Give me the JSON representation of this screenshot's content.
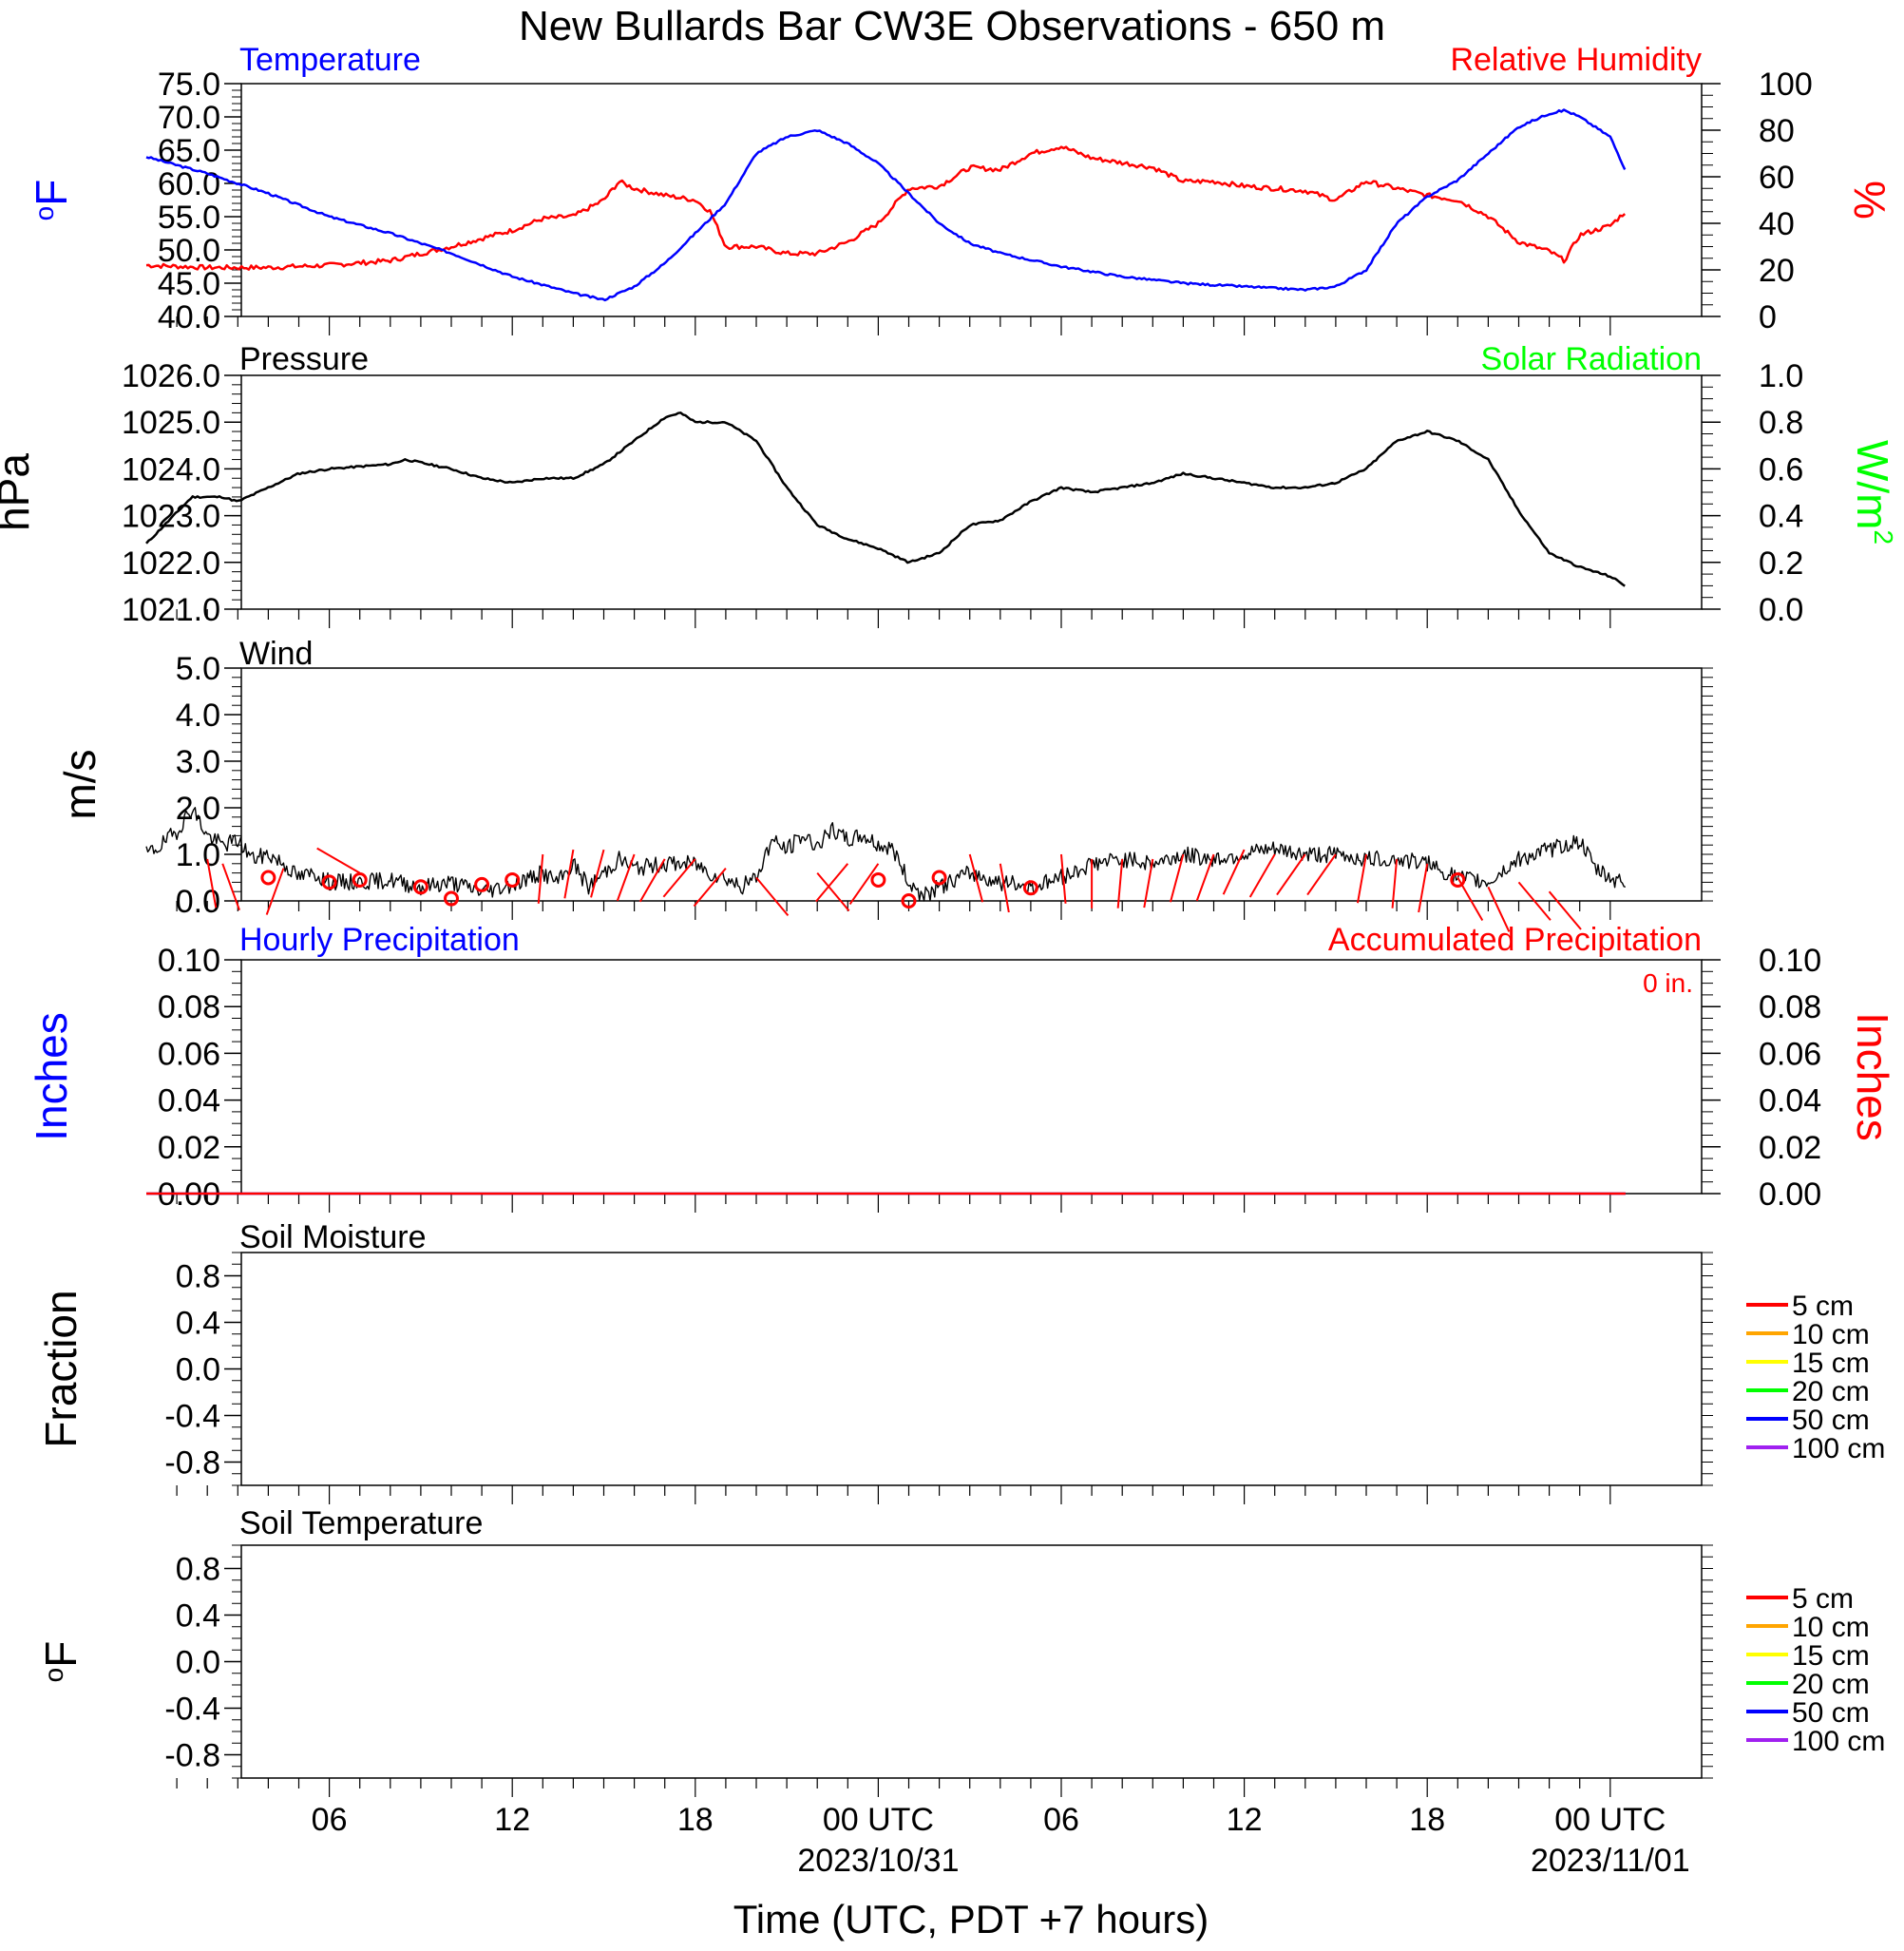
{
  "title": "New Bullards Bar CW3E Observations - 650 m",
  "xaxis": {
    "label": "Time (UTC, PDT +7 hours)",
    "ticks": [
      {
        "hour": 6,
        "label": "06",
        "date": ""
      },
      {
        "hour": 12,
        "label": "12",
        "date": ""
      },
      {
        "hour": 18,
        "label": "18",
        "date": ""
      },
      {
        "hour": 24,
        "label": "00 UTC",
        "date": "2023/10/31"
      },
      {
        "hour": 30,
        "label": "06",
        "date": ""
      },
      {
        "hour": 36,
        "label": "12",
        "date": ""
      },
      {
        "hour": 42,
        "label": "18",
        "date": ""
      },
      {
        "hour": 48,
        "label": "00 UTC",
        "date": "2023/11/01"
      }
    ]
  },
  "colors": {
    "blue": "#0000ff",
    "red": "#ff0000",
    "green": "#00ff00",
    "black": "#000000"
  },
  "panels": {
    "temp_rh": {
      "left_title": "Temperature",
      "right_title": "Relative Humidity",
      "left_unit": "oF",
      "right_unit": "%",
      "left_ticks": [
        "40.0",
        "45.0",
        "50.0",
        "55.0",
        "60.0",
        "65.0",
        "70.0",
        "75.0"
      ],
      "right_ticks": [
        "0",
        "20",
        "40",
        "60",
        "80",
        "100"
      ]
    },
    "pressure": {
      "left_title": "Pressure",
      "right_title": "Solar Radiation",
      "left_unit": "hPa",
      "right_unit": "W/m2",
      "left_ticks": [
        "1021.0",
        "1022.0",
        "1023.0",
        "1024.0",
        "1025.0",
        "1026.0"
      ],
      "right_ticks": [
        "0.0",
        "0.2",
        "0.4",
        "0.6",
        "0.8",
        "1.0"
      ]
    },
    "wind": {
      "left_title": "Wind",
      "left_unit": "m/s",
      "left_ticks": [
        "0.0",
        "1.0",
        "2.0",
        "3.0",
        "4.0",
        "5.0"
      ]
    },
    "precip": {
      "left_title": "Hourly Precipitation",
      "right_title": "Accumulated Precipitation",
      "accum_label": "0 in.",
      "left_unit": "Inches",
      "right_unit": "Inches",
      "left_ticks": [
        "0.00",
        "0.02",
        "0.04",
        "0.06",
        "0.08",
        "0.10"
      ],
      "right_ticks": [
        "0.00",
        "0.02",
        "0.04",
        "0.06",
        "0.08",
        "0.10"
      ]
    },
    "soil_moisture": {
      "left_title": "Soil Moisture",
      "left_unit": "Fraction",
      "left_ticks": [
        "-0.8",
        "-0.4",
        "0.0",
        "0.4",
        "0.8"
      ],
      "legend": [
        {
          "label": "5 cm",
          "color": "#ff0000"
        },
        {
          "label": "10 cm",
          "color": "#ffa500"
        },
        {
          "label": "15 cm",
          "color": "#ffff00"
        },
        {
          "label": "20 cm",
          "color": "#00ff00"
        },
        {
          "label": "50 cm",
          "color": "#0000ff"
        },
        {
          "label": "100 cm",
          "color": "#a020f0"
        }
      ]
    },
    "soil_temp": {
      "left_title": "Soil Temperature",
      "left_unit": "oF",
      "left_ticks": [
        "-0.8",
        "-0.4",
        "0.0",
        "0.4",
        "0.8"
      ],
      "legend": [
        {
          "label": "5 cm",
          "color": "#ff0000"
        },
        {
          "label": "10 cm",
          "color": "#ffa500"
        },
        {
          "label": "15 cm",
          "color": "#ffff00"
        },
        {
          "label": "20 cm",
          "color": "#00ff00"
        },
        {
          "label": "50 cm",
          "color": "#0000ff"
        },
        {
          "label": "100 cm",
          "color": "#a020f0"
        }
      ]
    }
  },
  "chart_data": {
    "type": "line",
    "x_unit": "hours since 2023/10/30 00 UTC",
    "xlim": [
      0,
      49
    ],
    "temperature": {
      "name": "Temperature",
      "color": "#0000ff",
      "ylim": [
        40,
        75
      ],
      "x": [
        0,
        2,
        4,
        6,
        8,
        10,
        12,
        14,
        15,
        16,
        17,
        18,
        19,
        20,
        21,
        22,
        23,
        24,
        25,
        26,
        27,
        28,
        30,
        32,
        34,
        36,
        38,
        39,
        40,
        41,
        42,
        43,
        44,
        45,
        46,
        46.5,
        47,
        48,
        48.5
      ],
      "y": [
        64,
        61.5,
        58.5,
        55,
        52.5,
        49.5,
        46,
        43.5,
        42.5,
        44.5,
        48,
        52.5,
        57,
        64.5,
        67,
        68,
        66,
        63,
        58.5,
        54,
        51,
        49.5,
        47.5,
        46,
        45,
        44.5,
        44,
        44.5,
        47,
        54,
        58,
        60.5,
        64.5,
        68.5,
        70.5,
        71,
        70,
        67,
        62
      ]
    },
    "relative_humidity": {
      "name": "Relative Humidity",
      "color": "#ff0000",
      "ylim": [
        0,
        100
      ],
      "x": [
        0,
        2,
        4,
        6,
        8,
        10,
        12,
        13,
        14,
        15,
        15.5,
        16,
        17,
        18,
        18.5,
        19,
        20,
        21,
        22,
        23,
        24,
        25,
        26,
        27,
        28,
        29,
        30,
        31,
        32,
        33,
        34,
        35,
        36,
        37,
        38,
        39,
        40,
        41,
        42,
        43,
        44,
        45,
        46,
        46.5,
        47,
        48,
        48.5
      ],
      "y": [
        22,
        21,
        21,
        22,
        24,
        30,
        37,
        42,
        43,
        50,
        58,
        55,
        52,
        50,
        45,
        30,
        30,
        27,
        27,
        32,
        40,
        55,
        56,
        64,
        63,
        70,
        73,
        68,
        66,
        64,
        58,
        58,
        56,
        55,
        54,
        50,
        58,
        55,
        52,
        50,
        43,
        32,
        28,
        24,
        35,
        39,
        45
      ]
    },
    "pressure": {
      "name": "Pressure",
      "color": "#000000",
      "ylim": [
        1021,
        1026
      ],
      "x": [
        0,
        1.5,
        2.5,
        3,
        5,
        6,
        8,
        8.5,
        10,
        11,
        12,
        13,
        14,
        15,
        16,
        17,
        17.5,
        18,
        19,
        20,
        21,
        22,
        23,
        24,
        25,
        26,
        27,
        28,
        29,
        30,
        31,
        32,
        33,
        34,
        35,
        36,
        37,
        38,
        39,
        40,
        41,
        42,
        43,
        44,
        45,
        46,
        47,
        48,
        48.5
      ],
      "y": [
        1022.4,
        1023.4,
        1023.4,
        1023.3,
        1023.9,
        1024,
        1024.1,
        1024.2,
        1024,
        1023.8,
        1023.7,
        1023.8,
        1023.8,
        1024.1,
        1024.6,
        1025.1,
        1025.2,
        1025.0,
        1025.0,
        1024.6,
        1023.6,
        1022.8,
        1022.5,
        1022.3,
        1022.0,
        1022.2,
        1022.8,
        1022.9,
        1023.3,
        1023.6,
        1023.5,
        1023.6,
        1023.7,
        1023.9,
        1023.8,
        1023.7,
        1023.6,
        1023.6,
        1023.7,
        1024.0,
        1024.6,
        1024.8,
        1024.6,
        1024.2,
        1023.1,
        1022.2,
        1021.9,
        1021.7,
        1021.5
      ]
    },
    "wind_speed": {
      "name": "Wind",
      "color": "#000000",
      "ylim": [
        0,
        5
      ],
      "x": [
        0,
        0.5,
        1,
        1.5,
        2,
        2.5,
        3,
        3.5,
        4,
        4.5,
        5,
        5.5,
        6,
        7,
        8,
        9,
        10,
        11,
        12,
        13,
        13.5,
        14,
        14.5,
        15,
        15.5,
        16,
        17,
        18,
        18.5,
        19,
        19.5,
        20,
        20.5,
        21,
        21.5,
        22,
        22.5,
        23,
        23.5,
        24,
        24.5,
        25,
        25.5,
        26,
        27,
        28,
        29,
        30,
        31,
        32,
        33,
        34,
        35,
        36,
        37,
        38,
        39,
        40,
        41,
        42,
        43,
        44,
        45,
        46,
        46.5,
        47,
        47.5,
        48,
        48.5
      ],
      "y": [
        1.0,
        1.2,
        1.5,
        2.0,
        1.4,
        1.2,
        1.3,
        0.9,
        1.0,
        0.8,
        0.5,
        0.6,
        0.4,
        0.4,
        0.45,
        0.3,
        0.4,
        0.2,
        0.35,
        0.6,
        0.4,
        0.8,
        0.3,
        0.6,
        0.9,
        0.7,
        0.8,
        0.8,
        0.6,
        0.5,
        0.3,
        0.5,
        1.3,
        1.1,
        1.4,
        1.2,
        1.5,
        1.3,
        1.4,
        1.2,
        1.1,
        0.4,
        0.1,
        0.3,
        0.6,
        0.4,
        0.3,
        0.5,
        0.8,
        0.9,
        0.8,
        1.0,
        0.9,
        1.0,
        1.1,
        1.0,
        1.0,
        0.9,
        0.9,
        0.8,
        0.5,
        0.4,
        0.9,
        1.1,
        1.2,
        1.3,
        0.7,
        0.5,
        0.4
      ]
    },
    "wind_calm_circles": {
      "x": [
        4,
        6,
        7,
        9,
        10,
        11,
        12,
        24,
        25,
        26,
        29,
        43
      ],
      "y": [
        0.5,
        0.4,
        0.45,
        0.3,
        0.05,
        0.35,
        0.45,
        0.45,
        0.0,
        0.5,
        0.28,
        0.45
      ]
    },
    "wind_barbs": {
      "x": [
        2,
        2.5,
        4.5,
        7,
        13,
        14,
        15,
        16,
        17,
        18,
        19,
        20,
        22,
        23,
        24,
        27,
        28,
        30,
        31,
        32,
        33,
        34,
        35,
        36,
        37,
        38,
        39,
        40,
        41,
        42,
        43,
        44,
        45,
        46
      ],
      "y": [
        0.9,
        0.8,
        0.7,
        0.6,
        1.0,
        1.1,
        1.1,
        1.0,
        0.9,
        0.9,
        0.7,
        0.5,
        0.6,
        0.8,
        0.8,
        1.0,
        0.8,
        1.0,
        0.9,
        0.9,
        0.9,
        1.0,
        1.0,
        1.1,
        1.0,
        1.0,
        1.0,
        1.0,
        0.9,
        0.8,
        0.5,
        0.3,
        0.4,
        0.2
      ],
      "direction_deg": [
        170,
        160,
        200,
        300,
        185,
        190,
        195,
        200,
        210,
        220,
        220,
        140,
        140,
        220,
        215,
        165,
        170,
        175,
        180,
        185,
        190,
        195,
        200,
        205,
        210,
        215,
        215,
        190,
        185,
        190,
        150,
        155,
        140,
        140
      ]
    },
    "hourly_precipitation": {
      "name": "Hourly Precipitation",
      "color": "#0000ff",
      "ylim": [
        0,
        0.1
      ],
      "x": [
        0,
        48.5
      ],
      "y": [
        0,
        0
      ]
    },
    "accumulated_precipitation": {
      "name": "Accumulated Precipitation",
      "color": "#ff0000",
      "ylim": [
        0,
        0.1
      ],
      "x": [
        0,
        48.5
      ],
      "y": [
        0,
        0
      ]
    },
    "soil_moisture": {
      "ylim": [
        -1,
        1
      ],
      "series": []
    },
    "soil_temperature": {
      "ylim": [
        -1,
        1
      ],
      "series": []
    }
  }
}
